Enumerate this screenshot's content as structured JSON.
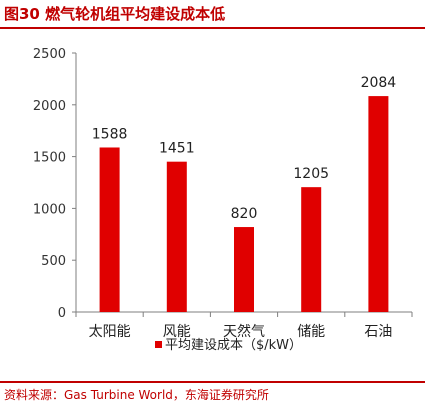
{
  "figure": {
    "title": "图30  燃气轮机组平均建设成本低",
    "source": "资料来源：Gas Turbine World，东海证券研究所"
  },
  "chart_data": {
    "type": "bar",
    "title": "",
    "xlabel": "",
    "ylabel": "",
    "categories": [
      "太阳能",
      "风能",
      "天然气",
      "储能",
      "石油"
    ],
    "series": [
      {
        "name": "平均建设成本（$/kW）",
        "values": [
          1588,
          1451,
          820,
          1205,
          2084
        ]
      }
    ],
    "ylim": [
      0,
      2500
    ],
    "yticks": [
      0,
      500,
      1000,
      1500,
      2000,
      2500
    ],
    "ytick_labels": [
      "0",
      "500",
      "1000",
      "1500",
      "2000",
      "2500"
    ],
    "data_labels": [
      "1588",
      "1451",
      "820",
      "1205",
      "2084"
    ],
    "legend_position": "bottom",
    "grid": false,
    "bar_color": "#e00000"
  }
}
